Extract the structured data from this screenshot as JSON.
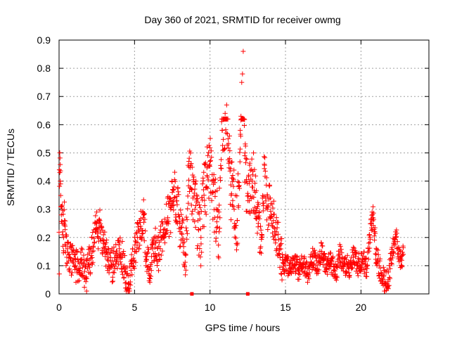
{
  "chart_data": {
    "type": "scatter",
    "title": "Day 360 of 2021, SRMTID for receiver owmg",
    "xlabel": "GPS time / hours",
    "ylabel": "SRMTID / TECUs",
    "xlim": [
      0,
      24.5
    ],
    "ylim": [
      0,
      0.9
    ],
    "xticks": [
      0,
      5,
      10,
      15,
      20
    ],
    "xtick_labels": [
      "0",
      "5",
      "10",
      "15",
      "20"
    ],
    "yticks": [
      0,
      0.1,
      0.2,
      0.3,
      0.4,
      0.5,
      0.6,
      0.7,
      0.8,
      0.9
    ],
    "ytick_labels": [
      "0",
      "0.1",
      "0.2",
      "0.3",
      "0.4",
      "0.5",
      "0.6",
      "0.7",
      "0.8",
      "0.9"
    ],
    "grid": true,
    "marker": "plus",
    "series_color": "#ff0000",
    "zero_markers_x": [
      8.8,
      12.5
    ],
    "x_data_end": 22.8,
    "series": [
      {
        "name": "SRMTID",
        "points": [
          [
            0.02,
            0.44
          ],
          [
            0.05,
            0.43
          ],
          [
            0.08,
            0.4
          ],
          [
            0.1,
            0.39
          ],
          [
            0.12,
            0.31
          ],
          [
            0.15,
            0.28
          ],
          [
            0.2,
            0.25
          ],
          [
            0.25,
            0.22
          ],
          [
            0.3,
            0.2
          ],
          [
            0.35,
            0.26
          ],
          [
            0.4,
            0.24
          ],
          [
            0.45,
            0.17
          ],
          [
            0.55,
            0.16
          ],
          [
            0.7,
            0.13
          ],
          [
            0.9,
            0.12
          ],
          [
            1.1,
            0.1
          ],
          [
            1.3,
            0.09
          ],
          [
            1.5,
            0.11
          ],
          [
            1.7,
            0.08
          ],
          [
            1.8,
            0.06
          ],
          [
            2.0,
            0.12
          ],
          [
            2.2,
            0.15
          ],
          [
            2.4,
            0.22
          ],
          [
            2.5,
            0.25
          ],
          [
            2.6,
            0.2
          ],
          [
            2.7,
            0.26
          ],
          [
            2.9,
            0.19
          ],
          [
            3.1,
            0.15
          ],
          [
            3.3,
            0.13
          ],
          [
            3.5,
            0.1
          ],
          [
            3.8,
            0.12
          ],
          [
            4.0,
            0.16
          ],
          [
            4.2,
            0.13
          ],
          [
            4.4,
            0.08
          ],
          [
            4.6,
            0.02
          ],
          [
            4.8,
            0.12
          ],
          [
            5.0,
            0.15
          ],
          [
            5.2,
            0.2
          ],
          [
            5.4,
            0.24
          ],
          [
            5.6,
            0.28
          ],
          [
            5.8,
            0.12
          ],
          [
            6.0,
            0.09
          ],
          [
            6.2,
            0.16
          ],
          [
            6.4,
            0.18
          ],
          [
            6.6,
            0.14
          ],
          [
            6.8,
            0.2
          ],
          [
            7.0,
            0.23
          ],
          [
            7.2,
            0.27
          ],
          [
            7.4,
            0.3
          ],
          [
            7.5,
            0.36
          ],
          [
            7.6,
            0.37
          ],
          [
            7.8,
            0.33
          ],
          [
            8.0,
            0.25
          ],
          [
            8.2,
            0.18
          ],
          [
            8.4,
            0.14
          ],
          [
            8.6,
            0.47
          ],
          [
            8.8,
            0.37
          ],
          [
            9.0,
            0.3
          ],
          [
            9.2,
            0.26
          ],
          [
            9.4,
            0.2
          ],
          [
            9.6,
            0.35
          ],
          [
            9.8,
            0.42
          ],
          [
            10.0,
            0.47
          ],
          [
            10.2,
            0.36
          ],
          [
            10.4,
            0.3
          ],
          [
            10.6,
            0.22
          ],
          [
            10.8,
            0.58
          ],
          [
            11.0,
            0.64
          ],
          [
            11.1,
            0.67
          ],
          [
            11.2,
            0.55
          ],
          [
            11.3,
            0.48
          ],
          [
            11.4,
            0.35
          ],
          [
            11.5,
            0.42
          ],
          [
            11.6,
            0.3
          ],
          [
            11.8,
            0.26
          ],
          [
            11.9,
            0.38
          ],
          [
            12.0,
            0.58
          ],
          [
            12.05,
            0.63
          ],
          [
            12.1,
            0.75
          ],
          [
            12.15,
            0.78
          ],
          [
            12.2,
            0.86
          ],
          [
            12.3,
            0.49
          ],
          [
            12.4,
            0.4
          ],
          [
            12.6,
            0.33
          ],
          [
            12.8,
            0.4
          ],
          [
            13.0,
            0.36
          ],
          [
            13.2,
            0.25
          ],
          [
            13.4,
            0.2
          ],
          [
            13.6,
            0.46
          ],
          [
            13.8,
            0.3
          ],
          [
            14.0,
            0.34
          ],
          [
            14.2,
            0.26
          ],
          [
            14.4,
            0.22
          ],
          [
            14.6,
            0.17
          ],
          [
            14.8,
            0.12
          ],
          [
            15.0,
            0.1
          ],
          [
            15.3,
            0.09
          ],
          [
            15.6,
            0.12
          ],
          [
            15.9,
            0.08
          ],
          [
            16.2,
            0.11
          ],
          [
            16.5,
            0.06
          ],
          [
            16.8,
            0.13
          ],
          [
            17.1,
            0.1
          ],
          [
            17.4,
            0.15
          ],
          [
            17.7,
            0.09
          ],
          [
            18.0,
            0.12
          ],
          [
            18.3,
            0.07
          ],
          [
            18.6,
            0.14
          ],
          [
            18.9,
            0.11
          ],
          [
            19.2,
            0.09
          ],
          [
            19.5,
            0.13
          ],
          [
            19.8,
            0.1
          ],
          [
            20.1,
            0.12
          ],
          [
            20.4,
            0.09
          ],
          [
            20.6,
            0.2
          ],
          [
            20.7,
            0.25
          ],
          [
            20.8,
            0.27
          ],
          [
            20.9,
            0.22
          ],
          [
            21.0,
            0.14
          ],
          [
            21.2,
            0.1
          ],
          [
            21.4,
            0.07
          ],
          [
            21.6,
            0.04
          ],
          [
            21.8,
            0.05
          ],
          [
            22.0,
            0.12
          ],
          [
            22.2,
            0.18
          ],
          [
            22.3,
            0.22
          ],
          [
            22.4,
            0.16
          ],
          [
            22.6,
            0.12
          ],
          [
            22.7,
            0.1
          ],
          [
            22.8,
            0.14
          ]
        ]
      }
    ]
  }
}
